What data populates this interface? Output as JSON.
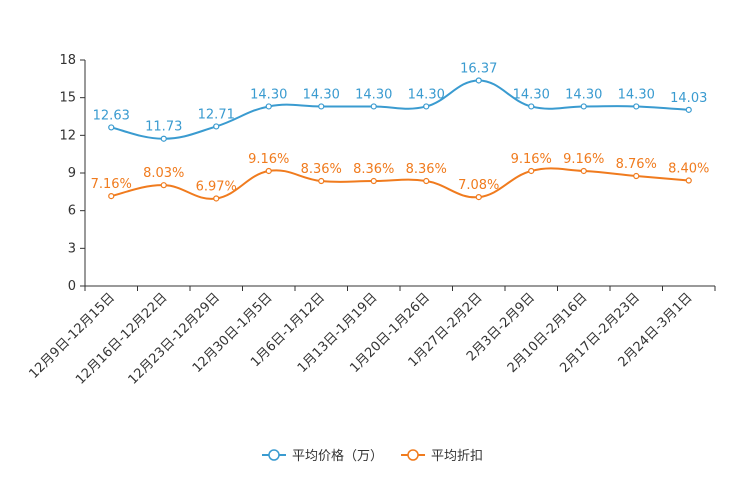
{
  "chart_data": {
    "type": "line",
    "categories": [
      "12月9日-12月15日",
      "12月16日-12月22日",
      "12月23日-12月29日",
      "12月30日-1月5日",
      "1月6日-1月12日",
      "1月13日-1月19日",
      "1月20日-1月26日",
      "1月27日-2月2日",
      "2月3日-2月9日",
      "2月10日-2月16日",
      "2月17日-2月23日",
      "2月24日-3月1日"
    ],
    "series": [
      {
        "name": "平均价格（万）",
        "color": "#3a9bd0",
        "values": [
          12.63,
          11.73,
          12.71,
          14.3,
          14.3,
          14.3,
          14.3,
          16.37,
          14.3,
          14.3,
          14.3,
          14.03
        ],
        "labels": [
          "12.63",
          "11.73",
          "12.71",
          "14.30",
          "14.30",
          "14.30",
          "14.30",
          "16.37",
          "14.30",
          "14.30",
          "14.30",
          "14.03"
        ]
      },
      {
        "name": "平均折扣",
        "color": "#f07b1e",
        "values": [
          7.16,
          8.03,
          6.97,
          9.16,
          8.36,
          8.36,
          8.36,
          7.08,
          9.16,
          9.16,
          8.76,
          8.4
        ],
        "labels": [
          "7.16%",
          "8.03%",
          "6.97%",
          "9.16%",
          "8.36%",
          "8.36%",
          "8.36%",
          "7.08%",
          "9.16%",
          "9.16%",
          "8.76%",
          "8.40%"
        ]
      }
    ],
    "y_ticks": [
      "0",
      "3",
      "6",
      "9",
      "12",
      "15",
      "18"
    ],
    "ylim": [
      0,
      18
    ],
    "xlabel": "",
    "ylabel": "",
    "title": "",
    "smooth": true,
    "legend_position": "bottom-center"
  }
}
